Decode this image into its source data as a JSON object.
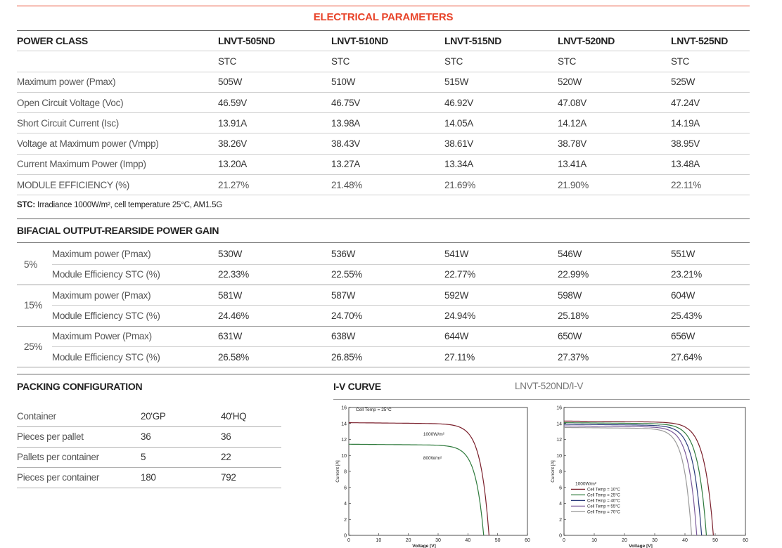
{
  "title": "ELECTRICAL PARAMETERS",
  "power_class": {
    "header": "POWER CLASS",
    "models": [
      "LNVT-505ND",
      "LNVT-510ND",
      "LNVT-515ND",
      "LNVT-520ND",
      "LNVT-525ND"
    ],
    "condition": [
      "STC",
      "STC",
      "STC",
      "STC",
      "STC"
    ],
    "rows": [
      {
        "label": "Maximum power (Pmax)",
        "values": [
          "505W",
          "510W",
          "515W",
          "520W",
          "525W"
        ]
      },
      {
        "label": "Open Circuit Voltage (Voc)",
        "values": [
          "46.59V",
          "46.75V",
          "46.92V",
          "47.08V",
          "47.24V"
        ]
      },
      {
        "label": "Short Circuit Current (Isc)",
        "values": [
          "13.91A",
          "13.98A",
          "14.05A",
          "14.12A",
          "14.19A"
        ]
      },
      {
        "label": "Voltage at Maximum power (Vmpp)",
        "values": [
          "38.26V",
          "38.43V",
          "38.61V",
          "38.78V",
          "38.95V"
        ]
      },
      {
        "label": "Current Maximum Power (Impp)",
        "values": [
          "13.20A",
          "13.27A",
          "13.34A",
          "13.41A",
          "13.48A"
        ]
      },
      {
        "label": "MODULE EFFICIENCY (%)",
        "values": [
          "21.27%",
          "21.48%",
          "21.69%",
          "21.90%",
          "22.11%"
        ]
      }
    ]
  },
  "note": {
    "bold": "STC:",
    "text": " Irradiance 1000W/m², cell temperature 25°C, AM1.5G"
  },
  "bifacial": {
    "title": "BIFACIAL OUTPUT-REARSIDE POWER GAIN",
    "groups": [
      {
        "pct": "5%",
        "rows": [
          {
            "label": "Maximum power (Pmax)",
            "values": [
              "530W",
              "536W",
              "541W",
              "546W",
              "551W"
            ]
          },
          {
            "label": "Module Efficiency STC (%)",
            "values": [
              "22.33%",
              "22.55%",
              "22.77%",
              "22.99%",
              "23.21%"
            ]
          }
        ]
      },
      {
        "pct": "15%",
        "rows": [
          {
            "label": "Maximum power (Pmax)",
            "values": [
              "581W",
              "587W",
              "592W",
              "598W",
              "604W"
            ]
          },
          {
            "label": "Module Efficiency STC (%)",
            "values": [
              "24.46%",
              "24.70%",
              "24.94%",
              "25.18%",
              "25.43%"
            ]
          }
        ]
      },
      {
        "pct": "25%",
        "rows": [
          {
            "label": "Maximum Power (Pmax)",
            "values": [
              "631W",
              "638W",
              "644W",
              "650W",
              "656W"
            ]
          },
          {
            "label": "Module Efficiency STC (%)",
            "values": [
              "26.58%",
              "26.85%",
              "27.11%",
              "27.37%",
              "27.64%"
            ]
          }
        ]
      }
    ]
  },
  "packing": {
    "title": "PACKING CONFIGURATION",
    "header": [
      "Container",
      "20'GP",
      "40'HQ"
    ],
    "rows": [
      [
        "Pieces per pallet",
        "36",
        "36"
      ],
      [
        "Pallets per container",
        "5",
        "22"
      ],
      [
        "Pieces per container",
        "180",
        "792"
      ]
    ]
  },
  "iv_curve": {
    "title": "I-V CURVE",
    "subtitle": "LNVT-520ND/I-V"
  },
  "colors": {
    "accent": "#e8442a"
  },
  "chart_data": [
    {
      "type": "line",
      "title": "",
      "annotation": "Cell Temp = 25°C",
      "xlabel": "Voltage [V]",
      "ylabel": "Current [A]",
      "xlim": [
        0,
        60
      ],
      "ylim": [
        0,
        16
      ],
      "xticks": [
        "0",
        "10",
        "20",
        "30",
        "40",
        "50",
        "60"
      ],
      "yticks": [
        "0",
        "2",
        "4",
        "6",
        "8",
        "10",
        "12",
        "14",
        "16"
      ],
      "series": [
        {
          "name": "1000W/m²",
          "color": "#7a1f2b",
          "isc": 14.1,
          "voc": 47.1
        },
        {
          "name": "800W/m²",
          "color": "#2e7a3c",
          "isc": 11.4,
          "voc": 45.3
        }
      ]
    },
    {
      "type": "line",
      "title": "",
      "legend_title": "1000W/m²",
      "xlabel": "Voltage [V]",
      "ylabel": "Current [A]",
      "xlim": [
        0,
        60
      ],
      "ylim": [
        0,
        16
      ],
      "xticks": [
        "0",
        "10",
        "20",
        "30",
        "40",
        "50",
        "60"
      ],
      "yticks": [
        "0",
        "2",
        "4",
        "6",
        "8",
        "10",
        "12",
        "14",
        "16"
      ],
      "series": [
        {
          "name": "Cell Temp = 10°C",
          "color": "#7a1f2b",
          "isc": 14.3,
          "voc": 49.4
        },
        {
          "name": "Cell Temp = 25°C",
          "color": "#2e7a3c",
          "isc": 14.1,
          "voc": 47.1
        },
        {
          "name": "Cell Temp = 40°C",
          "color": "#2a3a7a",
          "isc": 13.9,
          "voc": 45.5
        },
        {
          "name": "Cell Temp = 55°C",
          "color": "#7a5a9a",
          "isc": 13.7,
          "voc": 43.9
        },
        {
          "name": "Cell Temp = 70°C",
          "color": "#9a9a9a",
          "isc": 13.5,
          "voc": 42.2
        }
      ]
    }
  ]
}
